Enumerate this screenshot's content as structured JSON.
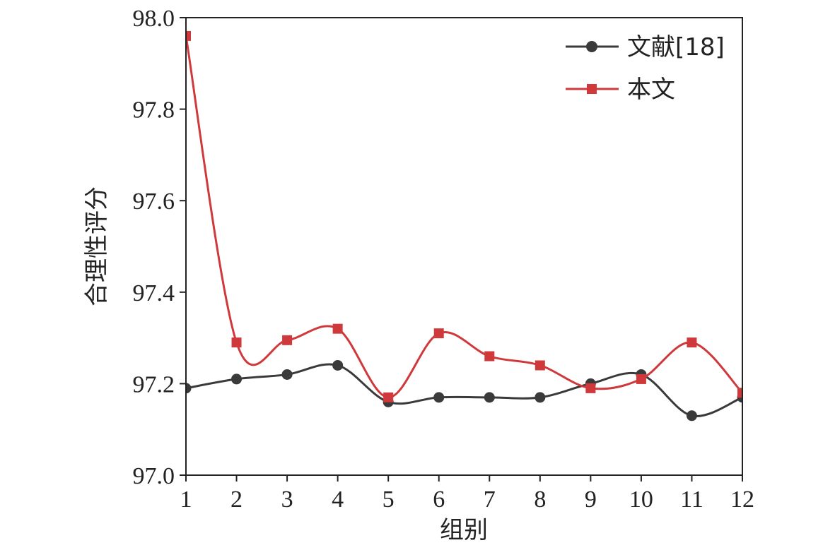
{
  "chart_data": {
    "type": "line",
    "xlabel": "组别",
    "ylabel": "合理性评分",
    "x": [
      1,
      2,
      3,
      4,
      5,
      6,
      7,
      8,
      9,
      10,
      11,
      12
    ],
    "xlim": [
      1,
      12
    ],
    "ylim": [
      97.0,
      98.0
    ],
    "x_ticks": [
      "1",
      "2",
      "3",
      "4",
      "5",
      "6",
      "7",
      "8",
      "9",
      "10",
      "11",
      "12"
    ],
    "y_ticks": [
      "97.0",
      "97.2",
      "97.4",
      "97.6",
      "97.8",
      "98.0"
    ],
    "grid": false,
    "legend_position": "top-right",
    "series": [
      {
        "name": "文献[18]",
        "marker": "circle",
        "color": "#3a3a3a",
        "values": [
          97.19,
          97.21,
          97.22,
          97.24,
          97.16,
          97.17,
          97.17,
          97.17,
          97.2,
          97.22,
          97.13,
          97.17
        ]
      },
      {
        "name": "本文",
        "marker": "square",
        "color": "#d0393b",
        "values": [
          97.96,
          97.29,
          97.295,
          97.32,
          97.17,
          97.31,
          97.26,
          97.24,
          97.19,
          97.21,
          97.29,
          97.18
        ]
      }
    ]
  }
}
